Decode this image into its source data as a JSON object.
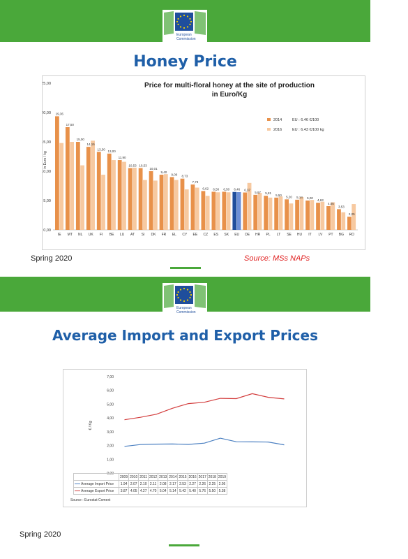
{
  "slide1": {
    "title": "Honey Price",
    "logo_text": [
      "European",
      "Commission"
    ],
    "footer_left": "Spring 2020",
    "source": "Source: MSs NAPs"
  },
  "slide2": {
    "title": "Average Import and Export Prices",
    "logo_text": [
      "European",
      "Commission"
    ],
    "footer_left": "Spring 2020",
    "source": "Source : Eurostat Comext"
  },
  "chart_data": [
    {
      "type": "bar",
      "title": "Price for multi-floral honey at the site of production in Euro/Kg",
      "title_lines": [
        "Price for multi-floral honey at the site of production",
        "in Euro/Kg"
      ],
      "ylabel": "in Euro / kg",
      "ylim": [
        0,
        25
      ],
      "yticks": [
        "25,00",
        "20,00",
        "15,00",
        "10,00",
        "5,00",
        "0,00"
      ],
      "grid": false,
      "legend_position": "right",
      "categories": [
        "IE",
        "MT",
        "NL",
        "UK",
        "FI",
        "BE",
        "LU",
        "AT",
        "SI",
        "DK",
        "FR",
        "EL",
        "CY",
        "EE",
        "CZ",
        "ES",
        "SK",
        "EU",
        "DE",
        "HR",
        "PL",
        "LT",
        "SE",
        "HU",
        "IT",
        "LV",
        "PT",
        "BG",
        "RO"
      ],
      "series": [
        {
          "name": "2014",
          "color": "#e8914a",
          "values": [
            19.36,
            17.5,
            15.0,
            14.15,
            13.3,
            13.0,
            11.9,
            10.53,
            10.53,
            10.01,
            9.4,
            9.0,
            8.73,
            7.73,
            6.62,
            6.5,
            6.5,
            6.46,
            6.37,
            5.97,
            5.81,
            5.5,
            5.2,
            5.14,
            5.0,
            4.63,
            4.05,
            3.53,
            2.25
          ]
        },
        {
          "name": "2016",
          "color": "#f7c9a0",
          "values": [
            14.8,
            15.0,
            11.0,
            15.2,
            9.4,
            11.9,
            11.6,
            10.6,
            8.5,
            8.4,
            9.5,
            8.5,
            6.9,
            7.2,
            5.8,
            6.4,
            6.4,
            6.43,
            8.0,
            6.3,
            5.5,
            5.7,
            4.5,
            5.6,
            5.1,
            4.8,
            4.7,
            3.0,
            4.4
          ]
        }
      ],
      "data_labels": [
        "19,36",
        "17,50",
        "15,00",
        "14,15",
        "13,30",
        "13,00",
        "11,90",
        "10,53",
        "10,53",
        "10,01",
        "9,40",
        "9,00",
        "8,73",
        "7,73",
        "6,62",
        "6,50",
        "6,50",
        "6,46",
        "6,37",
        "5,97",
        "5,81",
        "5,50",
        "5,20",
        "5,14",
        "5,00",
        "4,63",
        "4,05",
        "3,53",
        "2,25"
      ],
      "highlight_category": "EU",
      "highlight_colors": {
        "2014": "#1f4e9c",
        "2016": "#6c8fd6"
      },
      "legend_notes": {
        "2014": "EU : 6.46 €/100",
        "2016": "EU : 6.43 €/100 kg"
      }
    },
    {
      "type": "line",
      "x": [
        "2009",
        "2010",
        "2011",
        "2012",
        "2013",
        "2014",
        "2015",
        "2016",
        "2017",
        "2018",
        "2019"
      ],
      "ylabel": "€ / Kg",
      "ylim": [
        0,
        7
      ],
      "yticks": [
        "7,00",
        "6,00",
        "5,00",
        "4,00",
        "3,00",
        "2,00",
        "1,00",
        "0,00"
      ],
      "grid": false,
      "legend_position": "bottom-table",
      "series": [
        {
          "name": "Average Import Price",
          "color": "#4a7fc1",
          "values": [
            1.94,
            2.07,
            2.1,
            2.11,
            2.08,
            2.17,
            2.53,
            2.27,
            2.26,
            2.25,
            2.05
          ]
        },
        {
          "name": "Average Export Price",
          "color": "#d33d3d",
          "values": [
            3.87,
            4.05,
            4.27,
            4.7,
            5.04,
            5.14,
            5.42,
            5.4,
            5.76,
            5.5,
            5.38
          ]
        }
      ],
      "table_values": [
        [
          "1.94",
          "2.07",
          "2.10",
          "2.11",
          "2.08",
          "2.17",
          "2.53",
          "2.27",
          "2.26",
          "2.25",
          "2.05"
        ],
        [
          "3.87",
          "4.05",
          "4.27",
          "4.70",
          "5.04",
          "5.14",
          "5.42",
          "5.40",
          "5.76",
          "5.50",
          "5.38"
        ]
      ]
    }
  ]
}
